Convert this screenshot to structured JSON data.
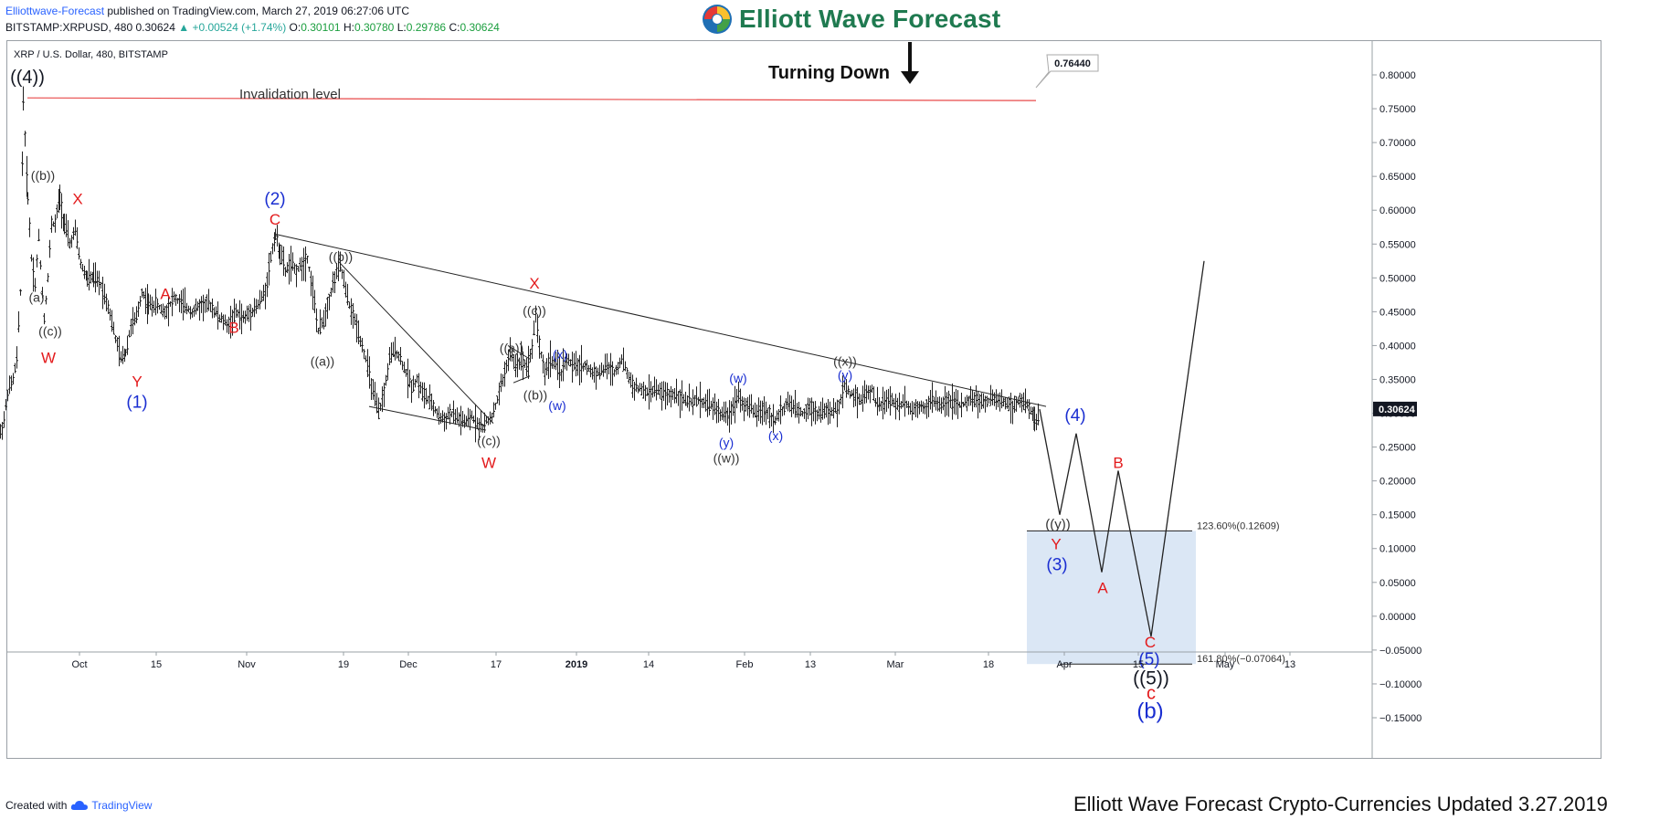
{
  "header": {
    "author": "Elliottwave-Forecast",
    "published_text": " published on TradingView.com, March 27, 2019 06:27:06 UTC",
    "symbol_line": "BITSTAMP:XRPUSD, 480",
    "last_price": "0.30624",
    "change": "▲ +0.00524 (+1.74%)",
    "o_label": "O:",
    "o_value": "0.30101",
    "h_label": "H:",
    "h_value": "0.30780",
    "l_label": "L:",
    "l_value": "0.29786",
    "c_label": "C:",
    "c_value": "0.30624",
    "chart_title": "XRP / U.S. Dollar, 480, BITSTAMP"
  },
  "brand": {
    "name": "Elliott Wave Forecast",
    "accent": "#1f7a50"
  },
  "footer": {
    "created_with": "Created with",
    "tradingview": "TradingView",
    "updated_note": "Elliott Wave Forecast Crypto-Currencies Updated 3.27.2019"
  },
  "colors": {
    "red": "#e31a1c",
    "blue": "#1a2ed1",
    "black": "#131722",
    "dark": "#333333",
    "fib_box": "#dbe7f5",
    "invalidation": "#e84a4a"
  },
  "chart_data": {
    "type": "bar",
    "title": "XRP / U.S. Dollar, 480, BITSTAMP",
    "y_axis": {
      "side": "right",
      "ylim": [
        -0.16,
        0.84
      ],
      "ticks": [
        "0.80000",
        "0.75000",
        "0.70000",
        "0.65000",
        "0.60000",
        "0.55000",
        "0.50000",
        "0.45000",
        "0.40000",
        "0.35000",
        "0.30000",
        "0.25000",
        "0.20000",
        "0.15000",
        "0.10000",
        "0.05000",
        "0.00000",
        "−0.05000",
        "−0.10000",
        "−0.15000"
      ]
    },
    "x_axis": {
      "ticks": [
        "Oct",
        "15",
        "Nov",
        "19",
        "Dec",
        "17",
        "2019",
        "14",
        "Feb",
        "13",
        "Mar",
        "18",
        "Apr",
        "15",
        "May",
        "13"
      ]
    },
    "last_price_label": "0.30624",
    "annotations": {
      "turning_down": "Turning Down",
      "invalidation": "Invalidation level",
      "invalidation_value": "0.76440",
      "fib_1236": "123.60%(0.12609)",
      "fib_1618": "161.80%(−0.07064)",
      "fib_levels": [
        0.12609,
        -0.07064
      ]
    },
    "price_path": [
      [
        0,
        0.27
      ],
      [
        4,
        0.29
      ],
      [
        8,
        0.33
      ],
      [
        14,
        0.35
      ],
      [
        18,
        0.38
      ],
      [
        22,
        0.48
      ],
      [
        25,
        0.765
      ],
      [
        30,
        0.62
      ],
      [
        34,
        0.53
      ],
      [
        38,
        0.49
      ],
      [
        42,
        0.56
      ],
      [
        48,
        0.44
      ],
      [
        52,
        0.5
      ],
      [
        56,
        0.58
      ],
      [
        60,
        0.58
      ],
      [
        65,
        0.62
      ],
      [
        70,
        0.58
      ],
      [
        76,
        0.55
      ],
      [
        82,
        0.57
      ],
      [
        88,
        0.52
      ],
      [
        95,
        0.5
      ],
      [
        102,
        0.5
      ],
      [
        110,
        0.49
      ],
      [
        118,
        0.46
      ],
      [
        126,
        0.41
      ],
      [
        132,
        0.38
      ],
      [
        137,
        0.39
      ],
      [
        143,
        0.43
      ],
      [
        149,
        0.44
      ],
      [
        155,
        0.48
      ],
      [
        162,
        0.46
      ],
      [
        170,
        0.46
      ],
      [
        180,
        0.45
      ],
      [
        190,
        0.47
      ],
      [
        200,
        0.46
      ],
      [
        210,
        0.45
      ],
      [
        220,
        0.46
      ],
      [
        230,
        0.46
      ],
      [
        240,
        0.44
      ],
      [
        250,
        0.43
      ],
      [
        258,
        0.45
      ],
      [
        266,
        0.44
      ],
      [
        274,
        0.45
      ],
      [
        282,
        0.46
      ],
      [
        290,
        0.48
      ],
      [
        296,
        0.53
      ],
      [
        301,
        0.565
      ],
      [
        306,
        0.54
      ],
      [
        312,
        0.51
      ],
      [
        318,
        0.52
      ],
      [
        324,
        0.51
      ],
      [
        330,
        0.52
      ],
      [
        336,
        0.53
      ],
      [
        342,
        0.48
      ],
      [
        348,
        0.42
      ],
      [
        354,
        0.44
      ],
      [
        360,
        0.47
      ],
      [
        366,
        0.5
      ],
      [
        372,
        0.52
      ],
      [
        378,
        0.48
      ],
      [
        384,
        0.45
      ],
      [
        390,
        0.43
      ],
      [
        396,
        0.4
      ],
      [
        402,
        0.37
      ],
      [
        408,
        0.33
      ],
      [
        414,
        0.3
      ],
      [
        420,
        0.33
      ],
      [
        426,
        0.38
      ],
      [
        432,
        0.395
      ],
      [
        438,
        0.38
      ],
      [
        444,
        0.36
      ],
      [
        450,
        0.34
      ],
      [
        456,
        0.35
      ],
      [
        462,
        0.33
      ],
      [
        468,
        0.32
      ],
      [
        474,
        0.31
      ],
      [
        480,
        0.295
      ],
      [
        486,
        0.29
      ],
      [
        492,
        0.3
      ],
      [
        498,
        0.295
      ],
      [
        504,
        0.29
      ],
      [
        510,
        0.285
      ],
      [
        516,
        0.295
      ],
      [
        522,
        0.285
      ],
      [
        528,
        0.28
      ],
      [
        534,
        0.29
      ],
      [
        540,
        0.3
      ],
      [
        546,
        0.33
      ],
      [
        552,
        0.36
      ],
      [
        558,
        0.39
      ],
      [
        564,
        0.37
      ],
      [
        570,
        0.38
      ],
      [
        576,
        0.37
      ],
      [
        582,
        0.395
      ],
      [
        586,
        0.45
      ],
      [
        590,
        0.4
      ],
      [
        596,
        0.36
      ],
      [
        602,
        0.38
      ],
      [
        608,
        0.37
      ],
      [
        614,
        0.36
      ],
      [
        620,
        0.38
      ],
      [
        626,
        0.37
      ],
      [
        632,
        0.37
      ],
      [
        640,
        0.37
      ],
      [
        648,
        0.36
      ],
      [
        656,
        0.36
      ],
      [
        664,
        0.37
      ],
      [
        672,
        0.36
      ],
      [
        680,
        0.38
      ],
      [
        686,
        0.36
      ],
      [
        692,
        0.34
      ],
      [
        700,
        0.335
      ],
      [
        708,
        0.33
      ],
      [
        716,
        0.335
      ],
      [
        724,
        0.33
      ],
      [
        732,
        0.325
      ],
      [
        740,
        0.33
      ],
      [
        748,
        0.32
      ],
      [
        756,
        0.315
      ],
      [
        764,
        0.32
      ],
      [
        772,
        0.315
      ],
      [
        780,
        0.31
      ],
      [
        788,
        0.3
      ],
      [
        796,
        0.295
      ],
      [
        802,
        0.31
      ],
      [
        808,
        0.33
      ],
      [
        814,
        0.31
      ],
      [
        820,
        0.31
      ],
      [
        826,
        0.3
      ],
      [
        832,
        0.305
      ],
      [
        840,
        0.3
      ],
      [
        848,
        0.29
      ],
      [
        856,
        0.305
      ],
      [
        862,
        0.315
      ],
      [
        870,
        0.305
      ],
      [
        878,
        0.3
      ],
      [
        886,
        0.31
      ],
      [
        894,
        0.3
      ],
      [
        902,
        0.305
      ],
      [
        910,
        0.3
      ],
      [
        918,
        0.31
      ],
      [
        924,
        0.34
      ],
      [
        930,
        0.33
      ],
      [
        936,
        0.325
      ],
      [
        942,
        0.32
      ],
      [
        948,
        0.33
      ],
      [
        954,
        0.335
      ],
      [
        960,
        0.31
      ],
      [
        966,
        0.315
      ],
      [
        972,
        0.32
      ],
      [
        978,
        0.315
      ],
      [
        984,
        0.31
      ],
      [
        990,
        0.32
      ],
      [
        996,
        0.305
      ],
      [
        1004,
        0.31
      ],
      [
        1012,
        0.31
      ],
      [
        1020,
        0.32
      ],
      [
        1028,
        0.31
      ],
      [
        1036,
        0.32
      ],
      [
        1044,
        0.315
      ],
      [
        1052,
        0.31
      ],
      [
        1060,
        0.32
      ],
      [
        1068,
        0.32
      ],
      [
        1076,
        0.315
      ],
      [
        1084,
        0.32
      ],
      [
        1092,
        0.32
      ],
      [
        1100,
        0.315
      ],
      [
        1108,
        0.31
      ],
      [
        1116,
        0.32
      ],
      [
        1124,
        0.31
      ],
      [
        1130,
        0.3
      ],
      [
        1134,
        0.29
      ],
      [
        1138,
        0.305
      ]
    ],
    "projection": [
      [
        1138,
        0.306
      ],
      [
        1160,
        0.15
      ],
      [
        1178,
        0.27
      ],
      [
        1206,
        0.065
      ],
      [
        1224,
        0.215
      ],
      [
        1260,
        -0.03
      ],
      [
        1318,
        0.525
      ]
    ],
    "channel_lines": [
      [
        [
          300,
          0.565
        ],
        [
          1145,
          0.31
        ]
      ],
      [
        [
          370,
          0.525
        ],
        [
          540,
          0.285
        ]
      ],
      [
        [
          404,
          0.31
        ],
        [
          532,
          0.275
        ]
      ],
      [
        [
          556,
          0.4
        ],
        [
          580,
          0.38
        ]
      ],
      [
        [
          562,
          0.345
        ],
        [
          580,
          0.355
        ]
      ]
    ],
    "wave_labels": [
      {
        "t": "((4))",
        "x": 30,
        "y": 0.795,
        "c": "black",
        "s": 20
      },
      {
        "t": "((b))",
        "x": 47,
        "y": 0.65,
        "c": "dark",
        "s": 14
      },
      {
        "t": "X",
        "x": 85,
        "y": 0.615,
        "c": "red",
        "s": 17
      },
      {
        "t": "(a)",
        "x": 40,
        "y": 0.47,
        "c": "dark",
        "s": 14
      },
      {
        "t": "((c))",
        "x": 55,
        "y": 0.42,
        "c": "dark",
        "s": 14
      },
      {
        "t": "W",
        "x": 53,
        "y": 0.38,
        "c": "red",
        "s": 17
      },
      {
        "t": "Y",
        "x": 150,
        "y": 0.345,
        "c": "red",
        "s": 17
      },
      {
        "t": "(1)",
        "x": 150,
        "y": 0.315,
        "c": "blue",
        "s": 19
      },
      {
        "t": "A",
        "x": 181,
        "y": 0.475,
        "c": "red",
        "s": 17
      },
      {
        "t": "B",
        "x": 256,
        "y": 0.425,
        "c": "red",
        "s": 17
      },
      {
        "t": "(2)",
        "x": 301,
        "y": 0.615,
        "c": "blue",
        "s": 19
      },
      {
        "t": "C",
        "x": 301,
        "y": 0.585,
        "c": "red",
        "s": 17
      },
      {
        "t": "((b))",
        "x": 373,
        "y": 0.53,
        "c": "dark",
        "s": 14
      },
      {
        "t": "((a))",
        "x": 353,
        "y": 0.375,
        "c": "dark",
        "s": 14
      },
      {
        "t": "X",
        "x": 585,
        "y": 0.49,
        "c": "red",
        "s": 17
      },
      {
        "t": "((c))",
        "x": 585,
        "y": 0.45,
        "c": "dark",
        "s": 14
      },
      {
        "t": "((a))",
        "x": 560,
        "y": 0.395,
        "c": "dark",
        "s": 14
      },
      {
        "t": "(x)",
        "x": 613,
        "y": 0.385,
        "c": "blue",
        "s": 14
      },
      {
        "t": "((b))",
        "x": 586,
        "y": 0.325,
        "c": "dark",
        "s": 14
      },
      {
        "t": "(w)",
        "x": 610,
        "y": 0.31,
        "c": "blue",
        "s": 14
      },
      {
        "t": "((c))",
        "x": 535,
        "y": 0.258,
        "c": "dark",
        "s": 14
      },
      {
        "t": "W",
        "x": 535,
        "y": 0.225,
        "c": "red",
        "s": 17
      },
      {
        "t": "(w)",
        "x": 808,
        "y": 0.35,
        "c": "blue",
        "s": 14
      },
      {
        "t": "(y)",
        "x": 795,
        "y": 0.255,
        "c": "blue",
        "s": 14
      },
      {
        "t": "((w))",
        "x": 795,
        "y": 0.232,
        "c": "dark",
        "s": 14
      },
      {
        "t": "(x)",
        "x": 849,
        "y": 0.265,
        "c": "blue",
        "s": 14
      },
      {
        "t": "((x))",
        "x": 925,
        "y": 0.375,
        "c": "dark",
        "s": 14
      },
      {
        "t": "(y)",
        "x": 925,
        "y": 0.355,
        "c": "blue",
        "s": 14
      },
      {
        "t": "(4)",
        "x": 1177,
        "y": 0.295,
        "c": "blue",
        "s": 19
      },
      {
        "t": "B",
        "x": 1224,
        "y": 0.225,
        "c": "red",
        "s": 17
      },
      {
        "t": "((y))",
        "x": 1158,
        "y": 0.135,
        "c": "dark",
        "s": 15
      },
      {
        "t": "Y",
        "x": 1156,
        "y": 0.105,
        "c": "red",
        "s": 17
      },
      {
        "t": "(3)",
        "x": 1157,
        "y": 0.075,
        "c": "blue",
        "s": 19
      },
      {
        "t": "A",
        "x": 1207,
        "y": 0.04,
        "c": "red",
        "s": 17
      },
      {
        "t": "C",
        "x": 1259,
        "y": -0.04,
        "c": "red",
        "s": 17
      },
      {
        "t": "(5)",
        "x": 1258,
        "y": -0.065,
        "c": "blue",
        "s": 19
      },
      {
        "t": "((5))",
        "x": 1260,
        "y": -0.093,
        "c": "black",
        "s": 21
      },
      {
        "t": "c",
        "x": 1260,
        "y": -0.115,
        "c": "red",
        "s": 20
      },
      {
        "t": "(b)",
        "x": 1259,
        "y": -0.142,
        "c": "blue",
        "s": 24
      }
    ]
  }
}
